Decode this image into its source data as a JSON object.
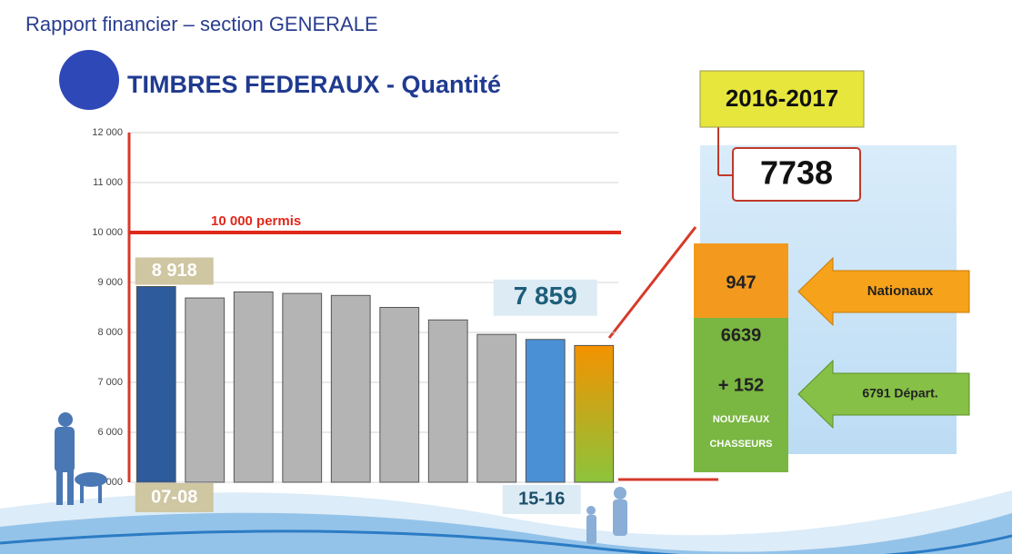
{
  "header": "Rapport financier – section GENERALE",
  "chart_data": {
    "type": "bar",
    "title": "TIMBRES FEDERAUX - Quantité",
    "categories": [
      "07-08",
      null,
      null,
      null,
      null,
      null,
      null,
      null,
      "15-16",
      null
    ],
    "values": [
      8918,
      8690,
      8810,
      8780,
      8740,
      8500,
      8250,
      7960,
      7859,
      7738
    ],
    "value_labels": [
      "8 918",
      null,
      null,
      null,
      null,
      null,
      null,
      null,
      "7 859",
      null
    ],
    "colors": [
      "#2d5b9b",
      "#b4b4b4",
      "#b4b4b4",
      "#b4b4b4",
      "#b4b4b4",
      "#b4b4b4",
      "#b4b4b4",
      "#b4b4b4",
      "#4a90d4",
      "#f39200"
    ],
    "highlight_gradient": [
      "#f39200",
      "#8cc43c"
    ],
    "ylim": [
      5000,
      12000
    ],
    "yticks": [
      {
        "value": 5000,
        "label": "5 000"
      },
      {
        "value": 6000,
        "label": "6 000"
      },
      {
        "value": 7000,
        "label": "7 000"
      },
      {
        "value": 8000,
        "label": "8 000"
      },
      {
        "value": 9000,
        "label": "9 000"
      },
      {
        "value": 10000,
        "label": "10 000"
      },
      {
        "value": 11000,
        "label": "11 000"
      },
      {
        "value": 12000,
        "label": "12 000"
      }
    ],
    "grid": true,
    "reference_line": {
      "value": 10000,
      "label": "10 000 permis",
      "color": "#e0281a"
    }
  },
  "panel": {
    "season": "2016-2017",
    "nationaux": {
      "value": "947",
      "label": "Nationaux"
    },
    "departement": {
      "value": "6639",
      "new": "+ 152",
      "new_label": [
        "NOUVEAUX",
        "CHASSEURS"
      ],
      "label": "6791 Départ."
    }
  }
}
